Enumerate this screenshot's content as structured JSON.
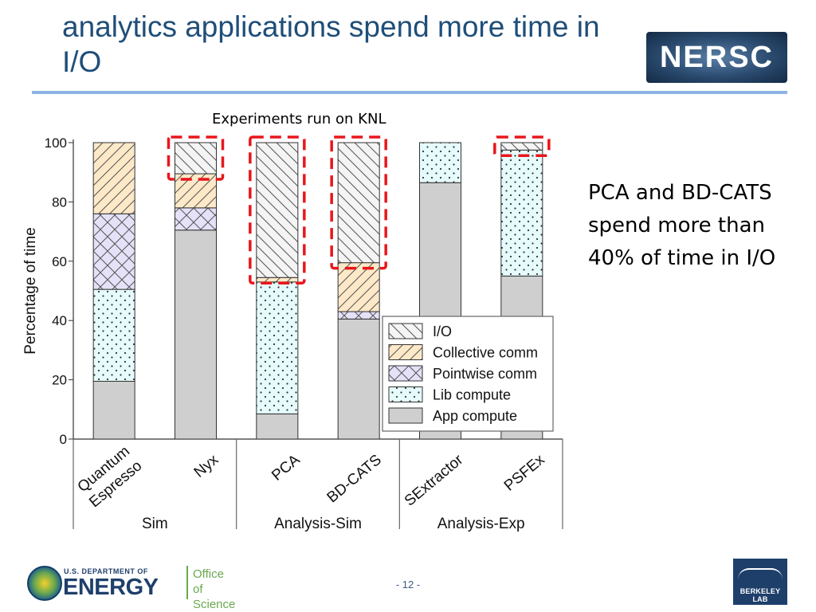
{
  "slide": {
    "title": "analytics applications spend more time in I/O",
    "logo_text": "NERSC",
    "chart_caption": "Experiments run on KNL",
    "note": "PCA and BD-CATS spend more than 40% of time in I/O",
    "page_number": "- 12 -"
  },
  "footer": {
    "doe_small": "U.S. DEPARTMENT OF",
    "doe_big": "ENERGY",
    "office_line1": "Office of",
    "office_line2": "Science",
    "berkeley": "BERKELEY LAB"
  },
  "chart_data": {
    "type": "bar",
    "stacked": true,
    "ylabel": "Percentage of time",
    "ylim": [
      0,
      100
    ],
    "yticks": [
      0,
      20,
      40,
      60,
      80,
      100
    ],
    "categories": [
      "Quantum Espresso",
      "Nyx",
      "PCA",
      "BD-CATS",
      "SExtractor",
      "PSFEx"
    ],
    "groups": [
      {
        "label": "Sim",
        "categories": [
          "Quantum Espresso",
          "Nyx"
        ]
      },
      {
        "label": "Analysis-Sim",
        "categories": [
          "PCA",
          "BD-CATS"
        ]
      },
      {
        "label": "Analysis-Exp",
        "categories": [
          "SExtractor",
          "PSFEx"
        ]
      }
    ],
    "series": [
      {
        "name": "App compute",
        "values": [
          19.5,
          70.5,
          8.5,
          40.5,
          86.5,
          55
        ]
      },
      {
        "name": "Lib compute",
        "values": [
          31,
          0,
          44.5,
          0,
          13.5,
          42.5
        ]
      },
      {
        "name": "Pointwise comm",
        "values": [
          25.5,
          7.5,
          0,
          2.5,
          0,
          0
        ]
      },
      {
        "name": "Collective comm",
        "values": [
          24,
          11.5,
          1.5,
          16.5,
          0,
          0
        ]
      },
      {
        "name": "I/O",
        "values": [
          0,
          10.5,
          45.5,
          40.5,
          0,
          2.5
        ]
      }
    ],
    "legend_order": [
      "I/O",
      "Collective comm",
      "Pointwise comm",
      "Lib compute",
      "App compute"
    ],
    "legend_position": "bottom-right",
    "highlighted": [
      "Nyx",
      "PCA",
      "BD-CATS",
      "PSFEx"
    ],
    "highlight_color": "#e8161b"
  }
}
